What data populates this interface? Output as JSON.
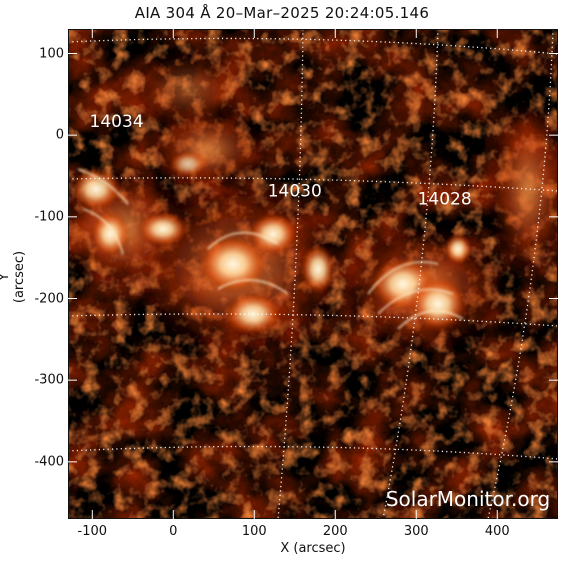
{
  "title": "AIA 304 Å 20–Mar–2025 20:24:05.146",
  "axes": {
    "xlabel": "X (arcsec)",
    "ylabel": "Y (arcsec)",
    "x_ticks": [
      "-100",
      "0",
      "100",
      "200",
      "300",
      "400"
    ],
    "y_ticks": [
      "100",
      "0",
      "-100",
      "-200",
      "-300",
      "-400"
    ],
    "xlim": [
      -130,
      475
    ],
    "ylim": [
      -470,
      130
    ]
  },
  "regions": [
    {
      "label": "14034",
      "x": -70,
      "y": 10
    },
    {
      "label": "14030",
      "x": 150,
      "y": -75
    },
    {
      "label": "14028",
      "x": 335,
      "y": -85
    }
  ],
  "watermark": "SolarMonitor.org",
  "colors": {
    "background": "#000000",
    "colormap_low": "#3a0500",
    "colormap_mid": "#d03c08",
    "colormap_high": "#fff3d0",
    "grid": "#ffffff",
    "region_label": "#ffffff"
  }
}
